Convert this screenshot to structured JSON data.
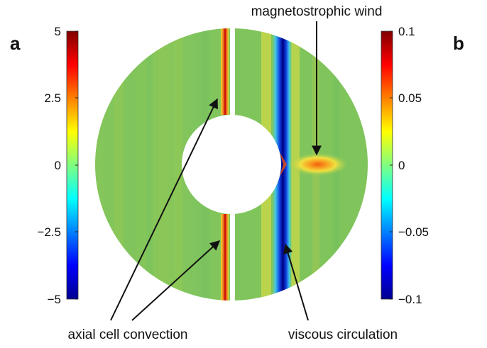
{
  "panels": {
    "left_letter": "a",
    "right_letter": "b"
  },
  "colorbars": {
    "left_ticks": [
      "5",
      "2.5",
      "0",
      "−2.5",
      "−5"
    ],
    "right_ticks": [
      "0.1",
      "0.05",
      "0",
      "−0.05",
      "−0.1"
    ],
    "colormap": [
      "#00008f",
      "#0000ff",
      "#0080ff",
      "#00ffff",
      "#80ff80",
      "#ffff00",
      "#ff8000",
      "#ff0000",
      "#800000"
    ]
  },
  "annotations": {
    "magnetostrophic_wind": "magnetostrophic wind",
    "axial_cell_convection": "axial cell convection",
    "viscous_circulation": "viscous circulation"
  },
  "colors": {
    "background_field": "#7cc45c",
    "text": "#111111"
  }
}
